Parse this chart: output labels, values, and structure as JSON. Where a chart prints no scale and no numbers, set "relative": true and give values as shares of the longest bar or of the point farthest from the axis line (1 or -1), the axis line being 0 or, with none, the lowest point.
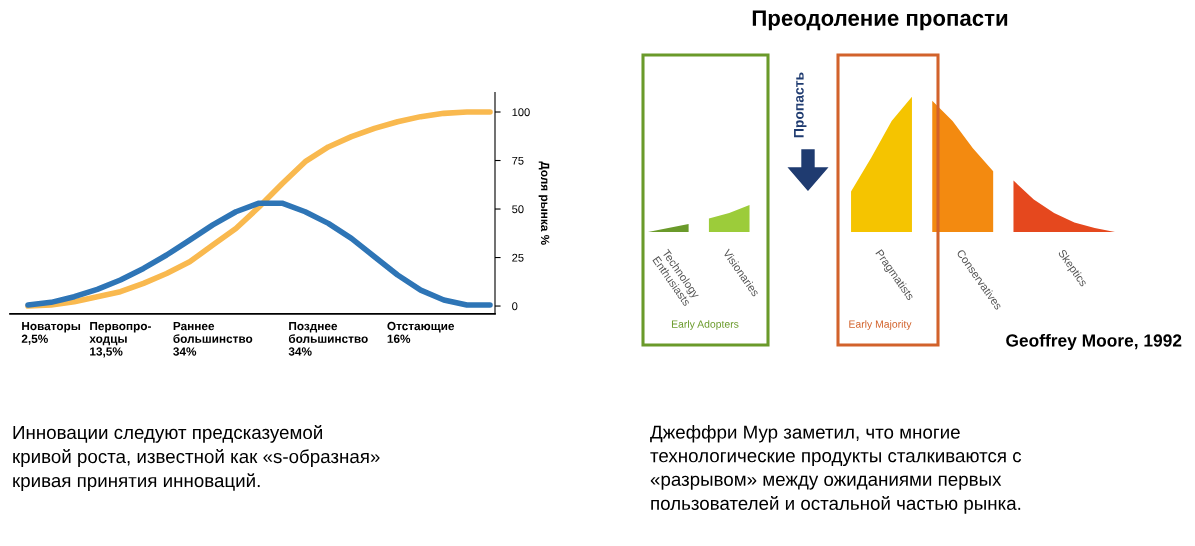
{
  "chart_data": [
    {
      "type": "line",
      "ylabel": "Доля рынка %",
      "ylim": [
        -4,
        110
      ],
      "yticks": [
        0,
        25,
        50,
        75,
        100
      ],
      "grid": false,
      "legend": false,
      "marker": "none",
      "line_style": "solid",
      "categories": [
        null,
        "Новаторы\n2,5%",
        null,
        null,
        "Первопро-\nходцы\n13,5%",
        null,
        null,
        null,
        "Раннее\nбольшинство\n34%",
        null,
        null,
        null,
        null,
        "Позднее\nбольшинство\n34%",
        null,
        null,
        null,
        "Отстающие\n16%",
        null,
        null,
        null
      ],
      "series": [
        {
          "color": "#f9b94f",
          "values": [
            0,
            0.5,
            2.2,
            4.8,
            7.4,
            11.7,
            16.8,
            22.8,
            31.4,
            40,
            51,
            63,
            74.4,
            82,
            87.3,
            91.6,
            95,
            97.6,
            99.3,
            100,
            100
          ]
        },
        {
          "color": "#2e75b6",
          "values": [
            0.5,
            1.9,
            4.8,
            8.6,
            13.4,
            19.4,
            26.3,
            34,
            41.8,
            48.6,
            53,
            53,
            48.6,
            42.6,
            34.9,
            25.4,
            16,
            8.2,
            3.1,
            0.5,
            0.5
          ]
        }
      ],
      "annotations": [
        "Инновации следуют предсказуемой\nкривой роста, известной как «s-образная»\nкривая принятия инноваций."
      ]
    },
    {
      "type": "area",
      "relative": true,
      "title": "Преодоление пропасти",
      "grid": false,
      "legend": false,
      "categories": [
        null,
        null,
        null,
        null,
        null,
        null,
        null,
        null,
        null,
        null,
        null,
        null,
        null,
        null,
        null,
        null,
        null,
        null,
        null,
        null,
        null,
        null,
        null,
        null
      ],
      "series": [
        {
          "name": "Technology\nEnthusiasts",
          "color": "#6a9a2a",
          "values": [
            0,
            0.03,
            0.06,
            null,
            null,
            null,
            null,
            null,
            null,
            null,
            null,
            null,
            null,
            null,
            null,
            null,
            null,
            null,
            null,
            null,
            null,
            null,
            null,
            null
          ]
        },
        {
          "name": "Visionaries",
          "color": "#9ccc3a",
          "values": [
            null,
            null,
            null,
            0.1,
            0.14,
            0.2,
            null,
            null,
            null,
            null,
            null,
            null,
            null,
            null,
            null,
            null,
            null,
            null,
            null,
            null,
            null,
            null,
            null,
            null
          ]
        },
        {
          "name": "Pragmatists",
          "color": "#f5c400",
          "values": [
            null,
            null,
            null,
            null,
            null,
            null,
            null,
            null,
            null,
            null,
            0.3,
            0.55,
            0.82,
            1,
            null,
            null,
            null,
            null,
            null,
            null,
            null,
            null,
            null,
            null
          ]
        },
        {
          "name": "Conservatives",
          "color": "#f38a10",
          "values": [
            null,
            null,
            null,
            null,
            null,
            null,
            null,
            null,
            null,
            null,
            null,
            null,
            null,
            null,
            0.97,
            0.82,
            0.62,
            0.45,
            null,
            null,
            null,
            null,
            null,
            null
          ]
        },
        {
          "name": "Skeptics",
          "color": "#e5481e",
          "values": [
            null,
            null,
            null,
            null,
            null,
            null,
            null,
            null,
            null,
            null,
            null,
            null,
            null,
            null,
            null,
            null,
            null,
            null,
            0.38,
            0.24,
            0.14,
            0.07,
            0.03,
            0
          ]
        }
      ],
      "annotations": [
        "Early Adopters",
        "Early Majority",
        "Пропасть",
        "Geoffrey Moore, 1992",
        "Джеффри Мур заметил, что многие\nтехнологические продукты сталкиваются с\n«разрывом» между ожиданиями первых\nпользователей и остальной частью рынка."
      ]
    }
  ]
}
